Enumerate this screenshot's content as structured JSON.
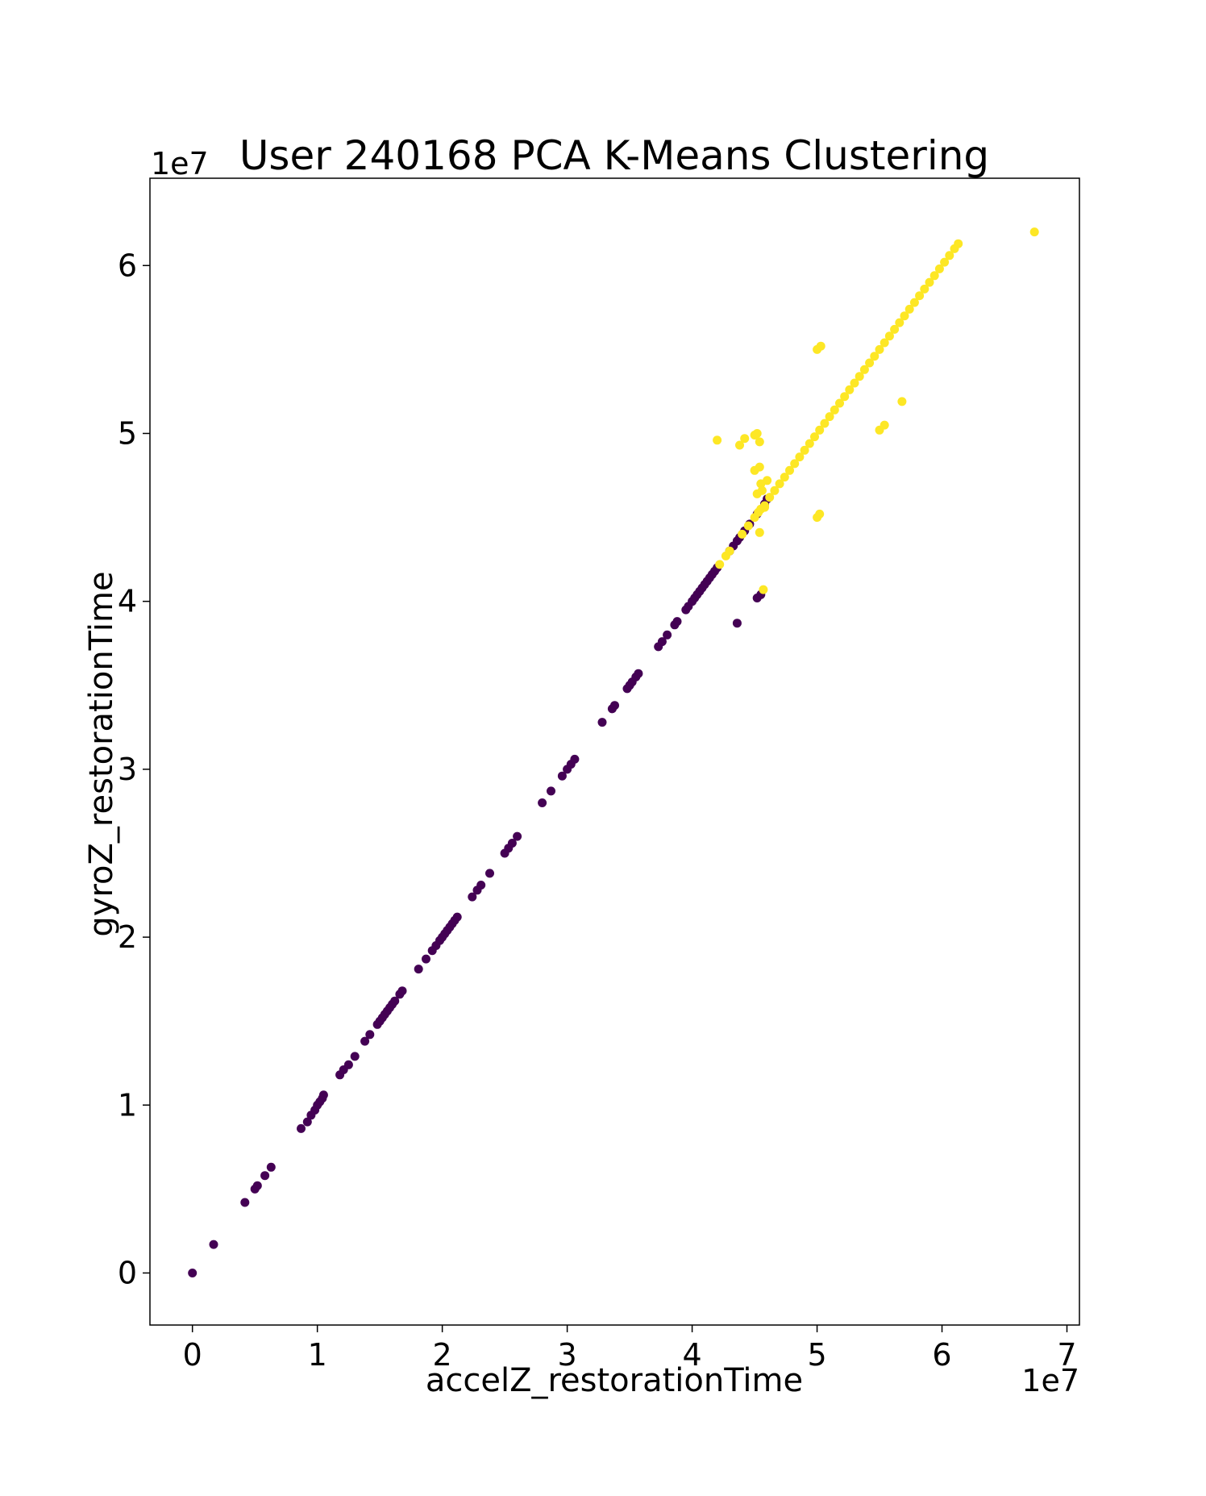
{
  "chart_data": {
    "type": "scatter",
    "title": "User 240168 PCA K-Means Clustering",
    "xlabel": "accelZ_restorationTime",
    "ylabel": "gyroZ_restorationTime",
    "x_multiplier": "1e7",
    "y_multiplier": "1e7",
    "xlim": [
      -0.34,
      7.1
    ],
    "ylim": [
      -0.31,
      6.52
    ],
    "xticks": [
      0,
      1,
      2,
      3,
      4,
      5,
      6,
      7
    ],
    "yticks": [
      0,
      1,
      2,
      3,
      4,
      5,
      6
    ],
    "grid": false,
    "colors": {
      "cluster_0": "#440154",
      "cluster_1": "#fde725"
    },
    "series": [
      {
        "cluster": 0,
        "color": "#440154",
        "points": [
          [
            0.0,
            0.0
          ],
          [
            0.17,
            0.17
          ],
          [
            0.42,
            0.42
          ],
          [
            0.5,
            0.5
          ],
          [
            0.52,
            0.52
          ],
          [
            0.58,
            0.58
          ],
          [
            0.63,
            0.63
          ],
          [
            0.87,
            0.86
          ],
          [
            0.92,
            0.9
          ],
          [
            0.95,
            0.94
          ],
          [
            0.98,
            0.97
          ],
          [
            1.0,
            1.0
          ],
          [
            1.02,
            1.02
          ],
          [
            1.04,
            1.04
          ],
          [
            1.05,
            1.06
          ],
          [
            1.18,
            1.18
          ],
          [
            1.21,
            1.21
          ],
          [
            1.25,
            1.24
          ],
          [
            1.3,
            1.29
          ],
          [
            1.38,
            1.38
          ],
          [
            1.42,
            1.42
          ],
          [
            1.48,
            1.48
          ],
          [
            1.5,
            1.5
          ],
          [
            1.52,
            1.52
          ],
          [
            1.54,
            1.54
          ],
          [
            1.56,
            1.56
          ],
          [
            1.58,
            1.58
          ],
          [
            1.6,
            1.6
          ],
          [
            1.62,
            1.62
          ],
          [
            1.66,
            1.66
          ],
          [
            1.68,
            1.68
          ],
          [
            1.81,
            1.81
          ],
          [
            1.87,
            1.87
          ],
          [
            1.92,
            1.92
          ],
          [
            1.95,
            1.95
          ],
          [
            1.98,
            1.98
          ],
          [
            2.0,
            2.0
          ],
          [
            2.02,
            2.02
          ],
          [
            2.04,
            2.04
          ],
          [
            2.06,
            2.06
          ],
          [
            2.08,
            2.08
          ],
          [
            2.1,
            2.1
          ],
          [
            2.12,
            2.12
          ],
          [
            2.24,
            2.24
          ],
          [
            2.28,
            2.28
          ],
          [
            2.31,
            2.31
          ],
          [
            2.38,
            2.38
          ],
          [
            2.5,
            2.5
          ],
          [
            2.53,
            2.53
          ],
          [
            2.56,
            2.56
          ],
          [
            2.6,
            2.6
          ],
          [
            2.8,
            2.8
          ],
          [
            2.87,
            2.87
          ],
          [
            2.96,
            2.96
          ],
          [
            3.0,
            3.0
          ],
          [
            3.03,
            3.03
          ],
          [
            3.06,
            3.06
          ],
          [
            3.28,
            3.28
          ],
          [
            3.36,
            3.36
          ],
          [
            3.38,
            3.38
          ],
          [
            3.48,
            3.48
          ],
          [
            3.5,
            3.5
          ],
          [
            3.52,
            3.52
          ],
          [
            3.55,
            3.55
          ],
          [
            3.57,
            3.57
          ],
          [
            3.73,
            3.73
          ],
          [
            3.76,
            3.76
          ],
          [
            3.8,
            3.8
          ],
          [
            3.86,
            3.86
          ],
          [
            3.88,
            3.88
          ],
          [
            3.95,
            3.95
          ],
          [
            3.97,
            3.97
          ],
          [
            4.0,
            4.0
          ],
          [
            4.02,
            4.02
          ],
          [
            4.04,
            4.04
          ],
          [
            4.06,
            4.06
          ],
          [
            4.08,
            4.08
          ],
          [
            4.1,
            4.1
          ],
          [
            4.12,
            4.12
          ],
          [
            4.14,
            4.14
          ],
          [
            4.16,
            4.16
          ],
          [
            4.18,
            4.18
          ],
          [
            4.2,
            4.2
          ],
          [
            4.3,
            4.3
          ],
          [
            4.33,
            4.33
          ],
          [
            4.36,
            4.36
          ],
          [
            4.38,
            4.38
          ],
          [
            4.42,
            4.42
          ],
          [
            4.46,
            4.46
          ],
          [
            4.52,
            4.52
          ],
          [
            4.58,
            4.58
          ],
          [
            4.6,
            4.61
          ],
          [
            4.36,
            3.87
          ],
          [
            4.52,
            4.02
          ],
          [
            4.55,
            4.04
          ]
        ]
      },
      {
        "cluster": 1,
        "color": "#fde725",
        "points": [
          [
            4.22,
            4.22
          ],
          [
            4.27,
            4.27
          ],
          [
            4.3,
            4.3
          ],
          [
            4.4,
            4.4
          ],
          [
            4.45,
            4.45
          ],
          [
            4.5,
            4.5
          ],
          [
            4.53,
            4.53
          ],
          [
            4.55,
            4.55
          ],
          [
            4.58,
            4.57
          ],
          [
            4.62,
            4.62
          ],
          [
            4.66,
            4.66
          ],
          [
            4.7,
            4.7
          ],
          [
            4.74,
            4.74
          ],
          [
            4.78,
            4.78
          ],
          [
            4.82,
            4.82
          ],
          [
            4.86,
            4.86
          ],
          [
            4.9,
            4.9
          ],
          [
            4.94,
            4.94
          ],
          [
            4.98,
            4.98
          ],
          [
            5.02,
            5.02
          ],
          [
            5.06,
            5.06
          ],
          [
            5.1,
            5.1
          ],
          [
            5.14,
            5.14
          ],
          [
            5.18,
            5.18
          ],
          [
            5.22,
            5.22
          ],
          [
            5.26,
            5.26
          ],
          [
            5.3,
            5.3
          ],
          [
            5.34,
            5.34
          ],
          [
            5.38,
            5.38
          ],
          [
            5.42,
            5.42
          ],
          [
            5.46,
            5.46
          ],
          [
            5.5,
            5.5
          ],
          [
            5.54,
            5.54
          ],
          [
            5.58,
            5.58
          ],
          [
            5.62,
            5.62
          ],
          [
            5.66,
            5.66
          ],
          [
            5.7,
            5.7
          ],
          [
            5.74,
            5.74
          ],
          [
            5.78,
            5.78
          ],
          [
            5.82,
            5.82
          ],
          [
            5.86,
            5.86
          ],
          [
            5.9,
            5.9
          ],
          [
            5.94,
            5.94
          ],
          [
            5.98,
            5.98
          ],
          [
            6.02,
            6.02
          ],
          [
            6.06,
            6.06
          ],
          [
            6.1,
            6.1
          ],
          [
            6.13,
            6.13
          ],
          [
            4.2,
            4.96
          ],
          [
            4.38,
            4.93
          ],
          [
            4.42,
            4.97
          ],
          [
            4.5,
            4.99
          ],
          [
            4.52,
            5.0
          ],
          [
            4.54,
            4.95
          ],
          [
            4.5,
            4.78
          ],
          [
            4.54,
            4.8
          ],
          [
            4.55,
            4.7
          ],
          [
            4.6,
            4.72
          ],
          [
            4.52,
            4.64
          ],
          [
            4.56,
            4.66
          ],
          [
            4.58,
            4.56
          ],
          [
            4.54,
            4.41
          ],
          [
            4.57,
            4.07
          ],
          [
            5.0,
            5.5
          ],
          [
            5.03,
            5.52
          ],
          [
            5.0,
            4.5
          ],
          [
            5.02,
            4.52
          ],
          [
            5.5,
            5.02
          ],
          [
            5.54,
            5.05
          ],
          [
            5.68,
            5.19
          ],
          [
            6.74,
            6.2
          ]
        ]
      }
    ]
  }
}
